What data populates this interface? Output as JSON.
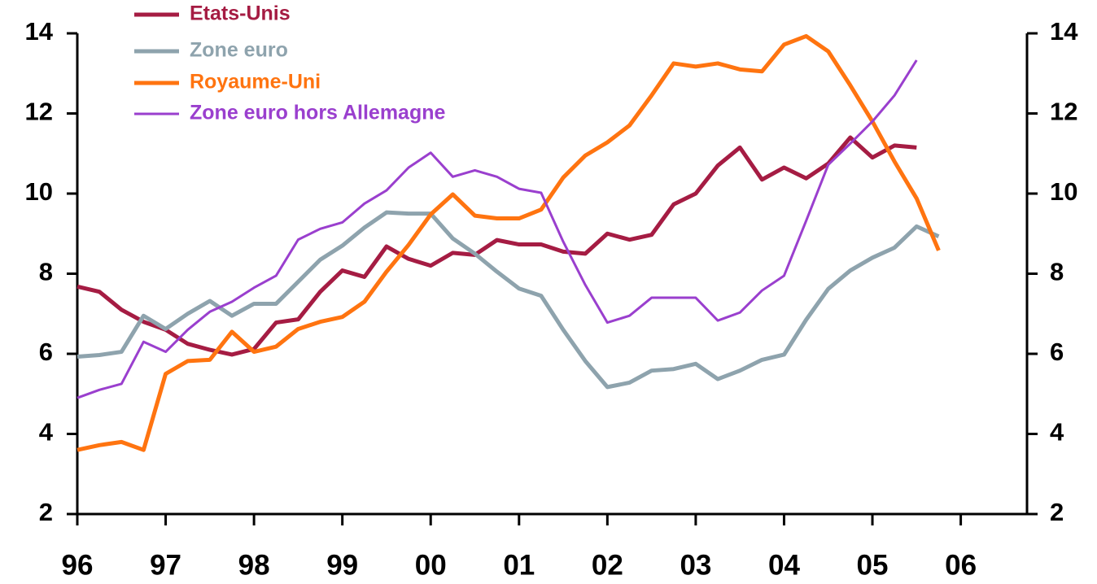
{
  "chart_data": {
    "type": "line",
    "x": [
      1996,
      1996.25,
      1996.5,
      1996.75,
      1997,
      1997.25,
      1997.5,
      1997.75,
      1998,
      1998.25,
      1998.5,
      1998.75,
      1999,
      1999.25,
      1999.5,
      1999.75,
      2000,
      2000.25,
      2000.5,
      2000.75,
      2001,
      2001.25,
      2001.5,
      2001.75,
      2002,
      2002.25,
      2002.5,
      2002.75,
      2003,
      2003.25,
      2003.5,
      2003.75,
      2004,
      2004.25,
      2004.5,
      2004.75,
      2005,
      2005.25,
      2005.5,
      2005.75
    ],
    "series": [
      {
        "name": "Etats-Unis",
        "color": "#a51c43",
        "width": 5,
        "values": [
          7.68,
          7.55,
          7.1,
          6.8,
          6.6,
          6.25,
          6.1,
          5.98,
          6.12,
          6.78,
          6.86,
          7.55,
          8.08,
          7.92,
          8.68,
          8.37,
          8.2,
          8.52,
          8.47,
          8.84,
          8.73,
          8.73,
          8.55,
          8.5,
          9.0,
          8.85,
          8.97,
          9.73,
          10.0,
          10.7,
          11.15,
          10.35,
          10.65,
          10.38,
          10.75,
          11.4,
          10.9,
          11.2,
          11.15,
          null
        ]
      },
      {
        "name": "Zone euro",
        "color": "#8ea3ad",
        "width": 5,
        "values": [
          5.93,
          5.97,
          6.05,
          6.95,
          6.62,
          7.0,
          7.32,
          6.95,
          7.25,
          7.25,
          7.8,
          8.35,
          8.7,
          9.15,
          9.53,
          9.5,
          9.5,
          8.88,
          8.5,
          8.05,
          7.63,
          7.45,
          6.6,
          5.82,
          5.17,
          5.28,
          5.58,
          5.62,
          5.75,
          5.37,
          5.58,
          5.85,
          5.98,
          6.85,
          7.62,
          8.08,
          8.4,
          8.65,
          9.18,
          8.93
        ]
      },
      {
        "name": "Royaume-Uni",
        "color": "#ff7410",
        "width": 5,
        "values": [
          3.6,
          3.72,
          3.8,
          3.6,
          5.5,
          5.82,
          5.85,
          6.55,
          6.05,
          6.18,
          6.62,
          6.8,
          6.92,
          7.3,
          8.05,
          8.72,
          9.48,
          9.98,
          9.45,
          9.38,
          9.38,
          9.6,
          10.4,
          10.95,
          11.28,
          11.7,
          12.45,
          13.25,
          13.17,
          13.25,
          13.1,
          13.05,
          13.72,
          13.93,
          13.55,
          12.7,
          11.8,
          10.8,
          9.88,
          8.58
        ]
      },
      {
        "name": "Zone euro hors Allemagne",
        "color": "#9a3fce",
        "width": 3,
        "values": [
          4.9,
          5.1,
          5.25,
          6.3,
          6.05,
          6.6,
          7.05,
          7.3,
          7.65,
          7.95,
          8.85,
          9.12,
          9.28,
          9.75,
          10.08,
          10.65,
          11.02,
          10.42,
          10.58,
          10.42,
          10.12,
          10.02,
          8.8,
          7.72,
          6.78,
          6.95,
          7.4,
          7.4,
          7.4,
          6.83,
          7.03,
          7.58,
          7.95,
          9.32,
          10.72,
          11.25,
          11.8,
          12.45,
          13.33,
          null
        ]
      }
    ],
    "xlim": [
      1996,
      2006.75
    ],
    "xticks": [
      {
        "value": 1996,
        "label": "96"
      },
      {
        "value": 1997,
        "label": "97"
      },
      {
        "value": 1998,
        "label": "98"
      },
      {
        "value": 1999,
        "label": "99"
      },
      {
        "value": 2000,
        "label": "00"
      },
      {
        "value": 2001,
        "label": "01"
      },
      {
        "value": 2002,
        "label": "02"
      },
      {
        "value": 2003,
        "label": "03"
      },
      {
        "value": 2004,
        "label": "04"
      },
      {
        "value": 2005,
        "label": "05"
      },
      {
        "value": 2006,
        "label": "06"
      }
    ],
    "ylim": [
      2,
      14
    ],
    "yticks": [
      2,
      4,
      6,
      8,
      10,
      12,
      14
    ],
    "y2lim": [
      2,
      14
    ],
    "y2ticks": [
      2,
      4,
      6,
      8,
      10,
      12,
      14
    ],
    "legend": "upper left",
    "grid": false
  }
}
